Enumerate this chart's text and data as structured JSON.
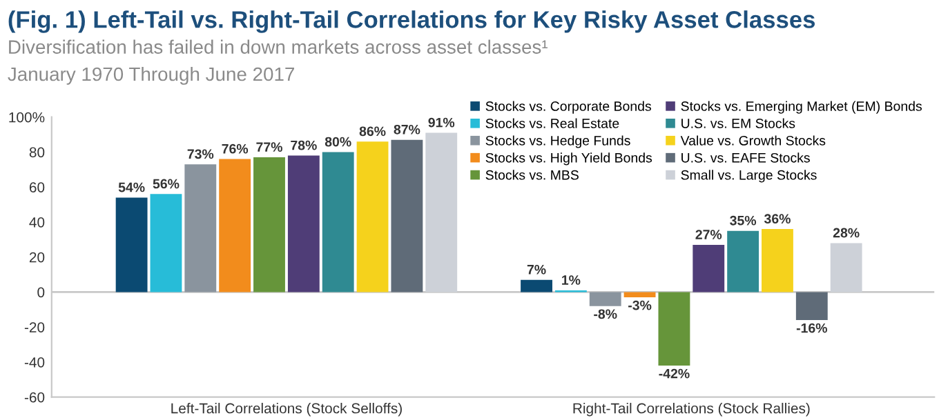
{
  "chart_data": {
    "type": "bar",
    "title": "(Fig. 1) Left-Tail vs. Right-Tail Correlations for Key Risky Asset Classes",
    "subtitle": "Diversification has failed in down markets across asset classes¹",
    "annotations": [
      "January 1970 Through June 2017"
    ],
    "categories": [
      "Left-Tail Correlations (Stock Selloffs)",
      "Right-Tail Correlations (Stock Rallies)"
    ],
    "series": [
      {
        "name": "Stocks vs. Corporate Bonds",
        "color": "#0b4a72",
        "values": [
          54,
          7
        ],
        "value_labels": [
          "54%",
          "7%"
        ]
      },
      {
        "name": "Stocks vs. Real Estate",
        "color": "#27bcd8",
        "values": [
          56,
          1
        ],
        "value_labels": [
          "56%",
          "1%"
        ]
      },
      {
        "name": "Stocks vs. Hedge Funds",
        "color": "#8a949e",
        "values": [
          73,
          -8
        ],
        "value_labels": [
          "73%",
          "-8%"
        ]
      },
      {
        "name": "Stocks vs. High Yield Bonds",
        "color": "#f28c1c",
        "values": [
          76,
          -3
        ],
        "value_labels": [
          "76%",
          "-3%"
        ]
      },
      {
        "name": "Stocks vs. MBS",
        "color": "#66953a",
        "values": [
          77,
          -42
        ],
        "value_labels": [
          "77%",
          "-42%"
        ]
      },
      {
        "name": "Stocks vs. Emerging Market (EM) Bonds",
        "color": "#4f3d77",
        "values": [
          78,
          27
        ],
        "value_labels": [
          "78%",
          "27%"
        ]
      },
      {
        "name": "U.S. vs. EM Stocks",
        "color": "#2f8a92",
        "values": [
          80,
          35
        ],
        "value_labels": [
          "80%",
          "35%"
        ]
      },
      {
        "name": "Value vs. Growth Stocks",
        "color": "#f5d21c",
        "values": [
          86,
          36
        ],
        "value_labels": [
          "86%",
          "36%"
        ]
      },
      {
        "name": "U.S. vs. EAFE Stocks",
        "color": "#5f6b78",
        "values": [
          87,
          -16
        ],
        "value_labels": [
          "87%",
          "-16%"
        ]
      },
      {
        "name": "Small vs. Large Stocks",
        "color": "#cdd1d8",
        "values": [
          91,
          28
        ],
        "value_labels": [
          "91%",
          "28%"
        ]
      }
    ],
    "ylim": [
      -60,
      100
    ],
    "yticks": [
      -60,
      -40,
      -20,
      0,
      20,
      40,
      60,
      80,
      {
        "value": 100,
        "label": "100%"
      }
    ],
    "ref_lines": [
      {
        "axis": "y",
        "value": 0,
        "color": "#c8c8c8"
      }
    ],
    "grid": false,
    "legend": "top right"
  }
}
